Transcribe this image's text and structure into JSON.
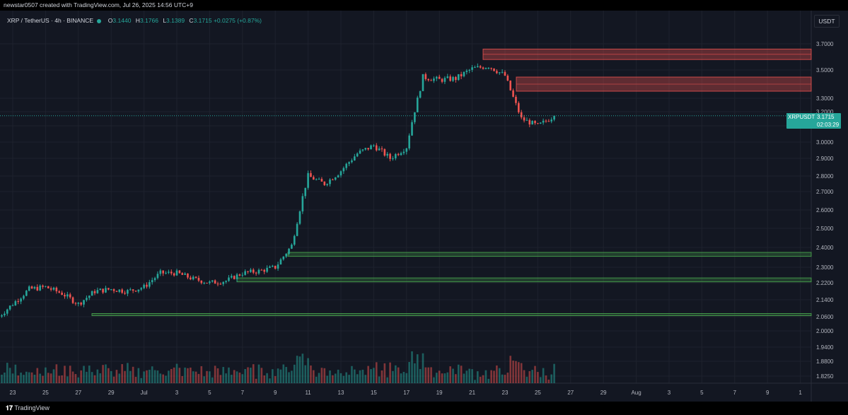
{
  "header": {
    "credit": "newstar0507 created with TradingView.com, Jul 26, 2025 14:56 UTC+9"
  },
  "legend": {
    "symbol": "XRP / TetherUS · 4h · BINANCE",
    "o_label": "O",
    "o_value": "3.1440",
    "h_label": "H",
    "h_value": "3.1766",
    "l_label": "L",
    "l_value": "3.1389",
    "c_label": "C",
    "c_value": "3.1715",
    "change": "+0.0275 (+0.87%)"
  },
  "price_axis": {
    "currency": "USDT",
    "ticks": [
      "3.7000",
      "3.5000",
      "3.3000",
      "3.2000",
      "3.1000",
      "3.0000",
      "2.9000",
      "2.8000",
      "2.7000",
      "2.6000",
      "2.5000",
      "2.4000",
      "2.3000",
      "2.2200",
      "2.1400",
      "2.0600",
      "2.0000",
      "1.9400",
      "1.8800",
      "1.8250"
    ]
  },
  "last_price": {
    "symbol": "XRPUSDT",
    "price": "3.1715",
    "countdown": "02:03:29"
  },
  "time_axis": {
    "ticks": [
      "23",
      "25",
      "27",
      "29",
      "Jul",
      "3",
      "5",
      "7",
      "9",
      "11",
      "13",
      "15",
      "17",
      "19",
      "21",
      "23",
      "25",
      "27",
      "29",
      "Aug",
      "3",
      "5",
      "7",
      "9",
      "1"
    ]
  },
  "footer": {
    "brand": "TradingView"
  },
  "colors": {
    "background": "#131722",
    "up": "#26a69a",
    "down": "#ef5350",
    "resistance_zone": "#ef5350",
    "support_zone": "#4caf50",
    "grid": "#1e222d"
  },
  "chart_data": {
    "type": "candlestick",
    "timeframe": "4h",
    "anchors": [
      {
        "date": "Jun 22",
        "price": 2.05
      },
      {
        "date": "Jun 23",
        "price": 2.12
      },
      {
        "date": "Jun 24",
        "price": 2.19
      },
      {
        "date": "Jun 25",
        "price": 2.2
      },
      {
        "date": "Jun 26",
        "price": 2.17
      },
      {
        "date": "Jun 27",
        "price": 2.12
      },
      {
        "date": "Jun 28",
        "price": 2.18
      },
      {
        "date": "Jun 29",
        "price": 2.19
      },
      {
        "date": "Jun 30",
        "price": 2.18
      },
      {
        "date": "Jul 1",
        "price": 2.2
      },
      {
        "date": "Jul 2",
        "price": 2.27
      },
      {
        "date": "Jul 3",
        "price": 2.27
      },
      {
        "date": "Jul 4",
        "price": 2.24
      },
      {
        "date": "Jul 5",
        "price": 2.22
      },
      {
        "date": "Jul 6",
        "price": 2.23
      },
      {
        "date": "Jul 7",
        "price": 2.27
      },
      {
        "date": "Jul 8",
        "price": 2.28
      },
      {
        "date": "Jul 9",
        "price": 2.3
      },
      {
        "date": "Jul 10",
        "price": 2.41
      },
      {
        "date": "Jul 11",
        "price": 2.8
      },
      {
        "date": "Jul 12",
        "price": 2.75
      },
      {
        "date": "Jul 13",
        "price": 2.83
      },
      {
        "date": "Jul 14",
        "price": 2.93
      },
      {
        "date": "Jul 15",
        "price": 2.98
      },
      {
        "date": "Jul 16",
        "price": 2.9
      },
      {
        "date": "Jul 17",
        "price": 2.97
      },
      {
        "date": "Jul 18",
        "price": 3.45
      },
      {
        "date": "Jul 19",
        "price": 3.43
      },
      {
        "date": "Jul 20",
        "price": 3.44
      },
      {
        "date": "Jul 21",
        "price": 3.51
      },
      {
        "date": "Jul 22",
        "price": 3.53
      },
      {
        "date": "Jul 23",
        "price": 3.46
      },
      {
        "date": "Jul 24",
        "price": 3.15
      },
      {
        "date": "Jul 25",
        "price": 3.1
      },
      {
        "date": "Jul 26",
        "price": 3.17
      }
    ],
    "period_high": 3.66,
    "period_low": 1.9,
    "last_close": 3.1715,
    "zones": [
      {
        "kind": "resistance",
        "from": 3.58,
        "to": 3.66
      },
      {
        "kind": "resistance",
        "from": 3.35,
        "to": 3.45
      },
      {
        "kind": "support",
        "from": 2.355,
        "to": 2.375
      },
      {
        "kind": "support",
        "from": 2.225,
        "to": 2.245
      },
      {
        "kind": "support",
        "from": 2.065,
        "to": 2.075
      }
    ],
    "xlim": [
      "Jun 22",
      "Aug 10"
    ]
  }
}
